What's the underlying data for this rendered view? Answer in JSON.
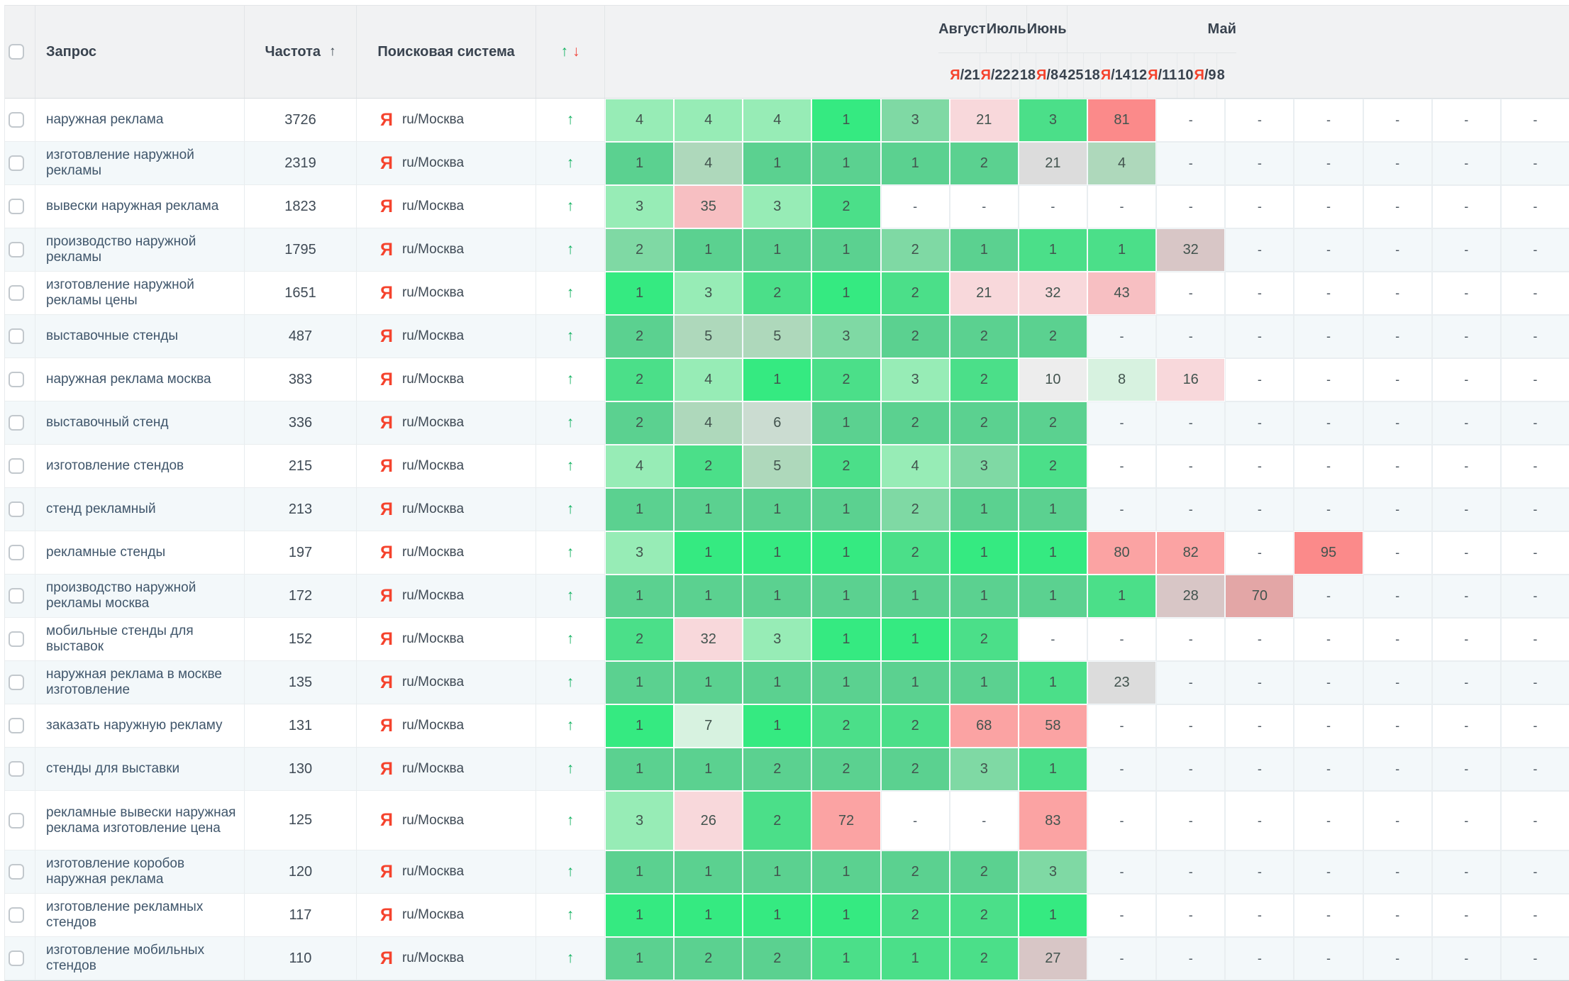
{
  "header": {
    "columns": {
      "query": "Запрос",
      "frequency": "Частота",
      "frequency_sort_icon": "↑",
      "engine": "Поисковая система",
      "trend_up_icon": "↑",
      "trend_down_icon": "↓"
    },
    "month_groups": [
      {
        "label": "Август",
        "span": 1
      },
      {
        "label": "Июль",
        "span": 2
      },
      {
        "label": "Июнь",
        "span": 3
      },
      {
        "label": "Май",
        "span": 8
      }
    ],
    "date_columns": [
      {
        "ya": true,
        "day": "21"
      },
      {
        "ya": true,
        "day": "22"
      },
      {
        "ya": false,
        "day": "2"
      },
      {
        "ya": false,
        "day": "18"
      },
      {
        "ya": true,
        "day": "8"
      },
      {
        "ya": false,
        "day": "4"
      },
      {
        "ya": false,
        "day": "25"
      },
      {
        "ya": false,
        "day": "18"
      },
      {
        "ya": true,
        "day": "14"
      },
      {
        "ya": false,
        "day": "12"
      },
      {
        "ya": true,
        "day": "11"
      },
      {
        "ya": false,
        "day": "10"
      },
      {
        "ya": true,
        "day": "9"
      },
      {
        "ya": false,
        "day": "8"
      }
    ],
    "ya_prefix": "Я/"
  },
  "engine_cell": {
    "icon": "Я",
    "label": "ru/Москва"
  },
  "row_trend_icon": "↑",
  "colors": {
    "yandex_red": "#f5432d",
    "trend_green": "#13b261",
    "trend_red": "#f0453c",
    "header_bg": "#f1f2f3",
    "alt_row_bg": "#f3f8fa",
    "palette": {
      "A": "#35ea81",
      "B": "#4bdf89",
      "C": "#5bd190",
      "D": "#7fd9a4",
      "E": "#97ecb6",
      "F": "#aed8bb",
      "G": "#d7f2e0",
      "M": "#cbdcd1",
      "GL": "#ededed",
      "GY": "#dcdcdc",
      "GP": "#d8c6c6",
      "P1": "#f8d8db",
      "P2": "#f7bfc2",
      "S": "#fba3a3",
      "DR": "#e3a6a6",
      "R": "#fb8a8a"
    }
  },
  "rows": [
    {
      "query": "наружная реклама",
      "frequency": "3726",
      "cells": [
        "4|E",
        "4|E",
        "4|E",
        "1|A",
        "3|D",
        "21|P1",
        "3|B",
        "81|R",
        "-",
        "-",
        "-",
        "-",
        "-",
        "-"
      ]
    },
    {
      "query": "изготовление наружной рекламы",
      "frequency": "2319",
      "cells": [
        "1|C",
        "4|F",
        "1|C",
        "1|C",
        "1|C",
        "2|C",
        "21|GY",
        "4|F",
        "-",
        "-",
        "-",
        "-",
        "-",
        "-"
      ]
    },
    {
      "query": "вывески наружная реклама",
      "frequency": "1823",
      "cells": [
        "3|E",
        "35|P2",
        "3|E",
        "2|B",
        "-",
        "-",
        "-",
        "-",
        "-",
        "-",
        "-",
        "-",
        "-",
        "-"
      ]
    },
    {
      "query": "производство наружной рекламы",
      "frequency": "1795",
      "cells": [
        "2|D",
        "1|C",
        "1|C",
        "1|C",
        "2|D",
        "1|C",
        "1|B",
        "1|B",
        "32|GP",
        "-",
        "-",
        "-",
        "-",
        "-"
      ]
    },
    {
      "query": "изготовление наружной рекламы цены",
      "frequency": "1651",
      "cells": [
        "1|A",
        "3|E",
        "2|B",
        "1|A",
        "2|B",
        "21|P1",
        "32|P1",
        "43|P2",
        "-",
        "-",
        "-",
        "-",
        "-",
        "-"
      ]
    },
    {
      "query": "выставочные стенды",
      "frequency": "487",
      "cells": [
        "2|C",
        "5|F",
        "5|F",
        "3|D",
        "2|C",
        "2|C",
        "2|C",
        "-",
        "-",
        "-",
        "-",
        "-",
        "-",
        "-"
      ]
    },
    {
      "query": "наружная реклама москва",
      "frequency": "383",
      "cells": [
        "2|B",
        "4|E",
        "1|A",
        "2|B",
        "3|E",
        "2|B",
        "10|GL",
        "8|G",
        "16|P1",
        "-",
        "-",
        "-",
        "-",
        "-"
      ]
    },
    {
      "query": "выставочный стенд",
      "frequency": "336",
      "cells": [
        "2|C",
        "4|F",
        "6|M",
        "1|C",
        "2|C",
        "2|C",
        "2|C",
        "-",
        "-",
        "-",
        "-",
        "-",
        "-",
        "-"
      ]
    },
    {
      "query": "изготовление стендов",
      "frequency": "215",
      "cells": [
        "4|E",
        "2|B",
        "5|F",
        "2|B",
        "4|E",
        "3|D",
        "2|B",
        "-",
        "-",
        "-",
        "-",
        "-",
        "-",
        "-"
      ]
    },
    {
      "query": "стенд рекламный",
      "frequency": "213",
      "cells": [
        "1|C",
        "1|C",
        "1|C",
        "1|C",
        "2|D",
        "1|C",
        "1|C",
        "-",
        "-",
        "-",
        "-",
        "-",
        "-",
        "-"
      ]
    },
    {
      "query": "рекламные стенды",
      "frequency": "197",
      "cells": [
        "3|E",
        "1|A",
        "1|A",
        "1|A",
        "2|B",
        "1|A",
        "1|A",
        "80|S",
        "82|S",
        "-",
        "95|R",
        "-",
        "-",
        "-"
      ]
    },
    {
      "query": "производство наружной рекламы москва",
      "frequency": "172",
      "cells": [
        "1|C",
        "1|C",
        "1|C",
        "1|C",
        "1|C",
        "1|C",
        "1|C",
        "1|B",
        "28|GP",
        "70|DR",
        "-",
        "-",
        "-",
        "-"
      ]
    },
    {
      "query": "мобильные стенды для выставок",
      "frequency": "152",
      "cells": [
        "2|B",
        "32|P1",
        "3|E",
        "1|A",
        "1|A",
        "2|B",
        "-",
        "-",
        "-",
        "-",
        "-",
        "-",
        "-",
        "-"
      ]
    },
    {
      "query": "наружная реклама в москве изготовление",
      "frequency": "135",
      "cells": [
        "1|C",
        "1|C",
        "1|C",
        "1|C",
        "1|C",
        "1|C",
        "1|B",
        "23|GY",
        "-",
        "-",
        "-",
        "-",
        "-",
        "-"
      ]
    },
    {
      "query": "заказать наружную рекламу",
      "frequency": "131",
      "cells": [
        "1|A",
        "7|G",
        "1|A",
        "2|B",
        "2|B",
        "68|S",
        "58|S",
        "-",
        "-",
        "-",
        "-",
        "-",
        "-",
        "-"
      ]
    },
    {
      "query": "стенды для выставки",
      "frequency": "130",
      "cells": [
        "1|C",
        "1|C",
        "2|C",
        "2|C",
        "2|C",
        "3|D",
        "1|B",
        "-",
        "-",
        "-",
        "-",
        "-",
        "-",
        "-"
      ]
    },
    {
      "query": "рекламные вывески наружная реклама изготовление цена",
      "frequency": "125",
      "cells": [
        "3|E",
        "26|P1",
        "2|B",
        "72|S",
        "-",
        "-",
        "83|S",
        "-",
        "-",
        "-",
        "-",
        "-",
        "-",
        "-"
      ]
    },
    {
      "query": "изготовление коробов наружная реклама",
      "frequency": "120",
      "cells": [
        "1|C",
        "1|C",
        "1|C",
        "1|C",
        "2|C",
        "2|C",
        "3|D",
        "-",
        "-",
        "-",
        "-",
        "-",
        "-",
        "-"
      ]
    },
    {
      "query": "изготовление рекламных стендов",
      "frequency": "117",
      "cells": [
        "1|A",
        "1|A",
        "1|A",
        "1|A",
        "2|B",
        "2|B",
        "1|A",
        "-",
        "-",
        "-",
        "-",
        "-",
        "-",
        "-"
      ]
    },
    {
      "query": "изготовление мобильных стендов",
      "frequency": "110",
      "cells": [
        "1|C",
        "2|C",
        "2|C",
        "1|B",
        "1|B",
        "2|B",
        "27|GP",
        "-",
        "-",
        "-",
        "-",
        "-",
        "-",
        "-"
      ]
    }
  ]
}
